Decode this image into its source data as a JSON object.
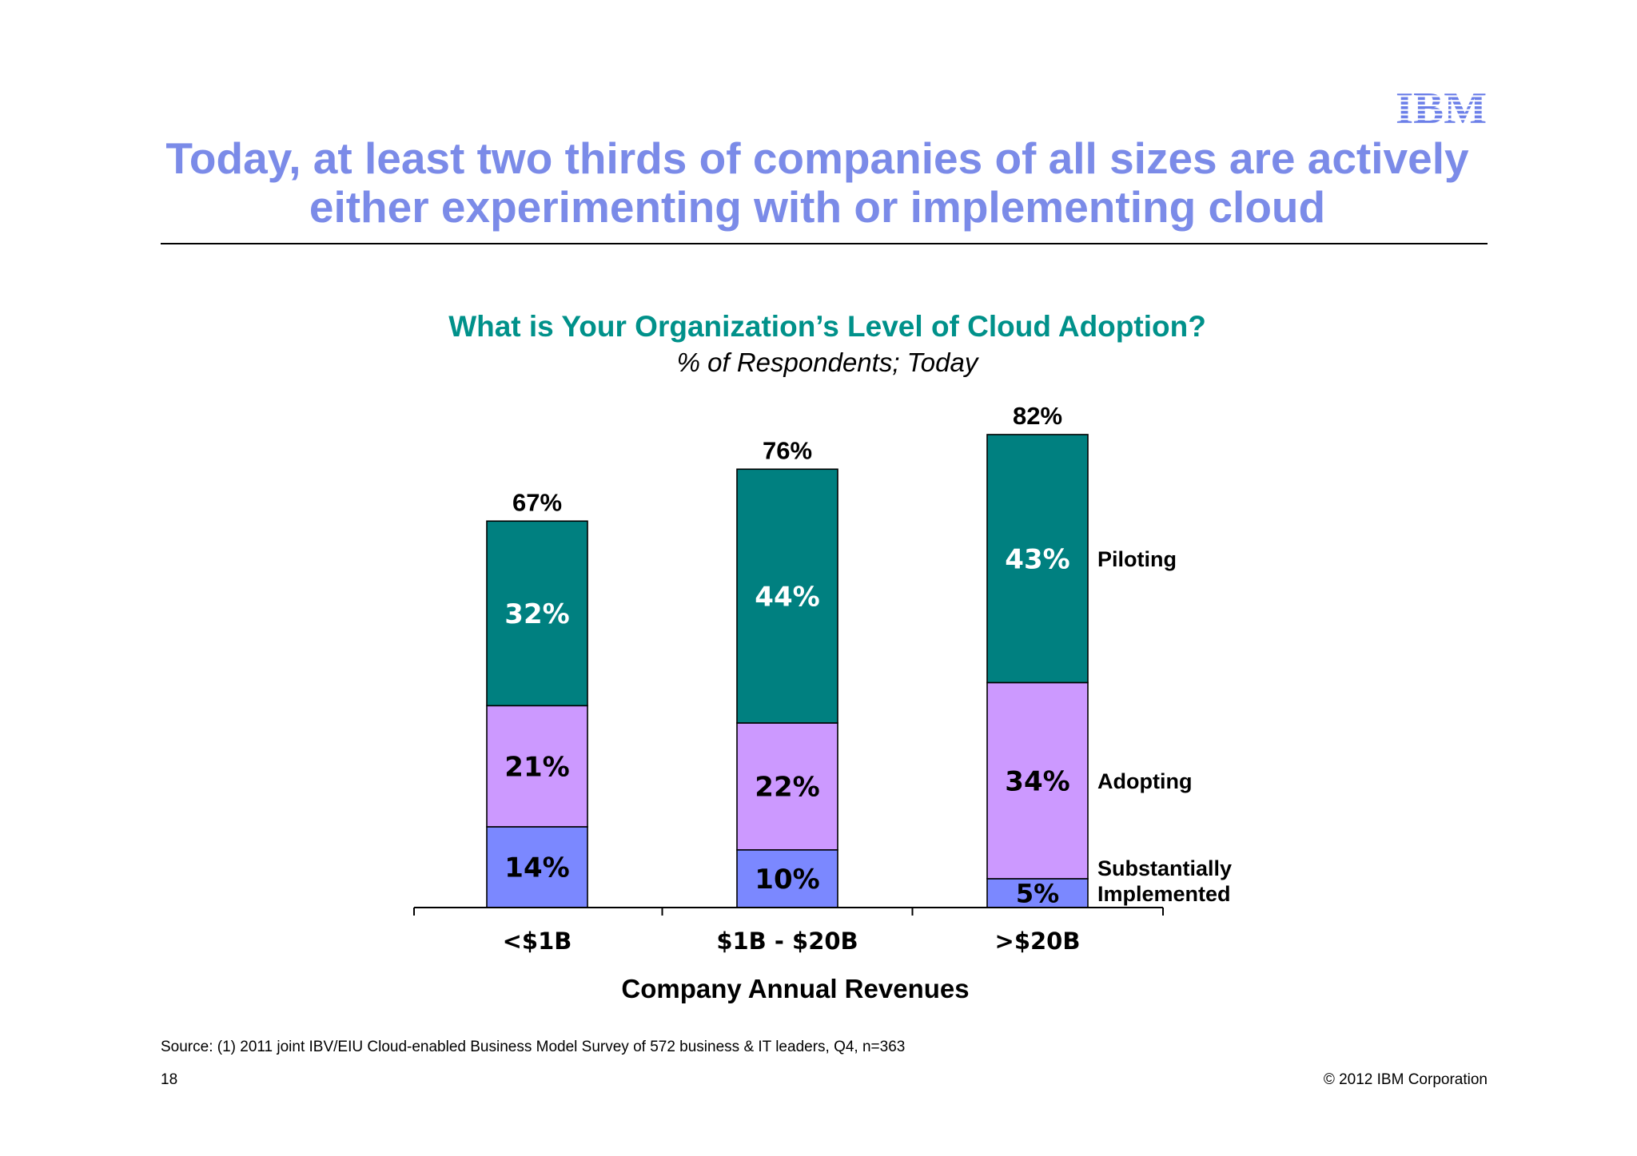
{
  "slide": {
    "title_line1": "Today, at least two thirds of companies of all sizes are actively",
    "title_line2": "either experimenting with or implementing cloud",
    "logo_text": "IBM",
    "source": "Source: (1) 2011 joint IBV/EIU Cloud-enabled Business Model Survey of 572 business & IT leaders, Q4, n=363",
    "page_number": "18",
    "copyright": "© 2012 IBM Corporation",
    "colors": {
      "title": "#7b8be8",
      "chart_title": "#00918a",
      "piloting": "#008080",
      "adopting": "#cc99ff",
      "implemented": "#7b88ff"
    }
  },
  "chart_data": {
    "type": "bar",
    "stacked": true,
    "title": "What is Your Organization’s Level of Cloud Adoption?",
    "subtitle": "% of Respondents; Today",
    "xlabel": "Company Annual Revenues",
    "ylabel": "",
    "categories": [
      "<$1B",
      "$1B - $20B",
      ">$20B"
    ],
    "totals": [
      67,
      76,
      82
    ],
    "total_labels": [
      "67%",
      "76%",
      "82%"
    ],
    "ylim": [
      0,
      82
    ],
    "grid": false,
    "legend_position": "right",
    "series": [
      {
        "name": "Substantially Implemented",
        "name_lines": [
          "Substantially",
          "Implemented"
        ],
        "values": [
          14,
          10,
          5
        ],
        "labels": [
          "14%",
          "10%",
          "5%"
        ],
        "color": "#7b88ff",
        "label_color": "#000000"
      },
      {
        "name": "Adopting",
        "name_lines": [
          "Adopting"
        ],
        "values": [
          21,
          22,
          34
        ],
        "labels": [
          "21%",
          "22%",
          "34%"
        ],
        "color": "#cc99ff",
        "label_color": "#000000"
      },
      {
        "name": "Piloting",
        "name_lines": [
          "Piloting"
        ],
        "values": [
          32,
          44,
          43
        ],
        "labels": [
          "32%",
          "44%",
          "43%"
        ],
        "color": "#008080",
        "label_color": "#ffffff"
      }
    ]
  }
}
